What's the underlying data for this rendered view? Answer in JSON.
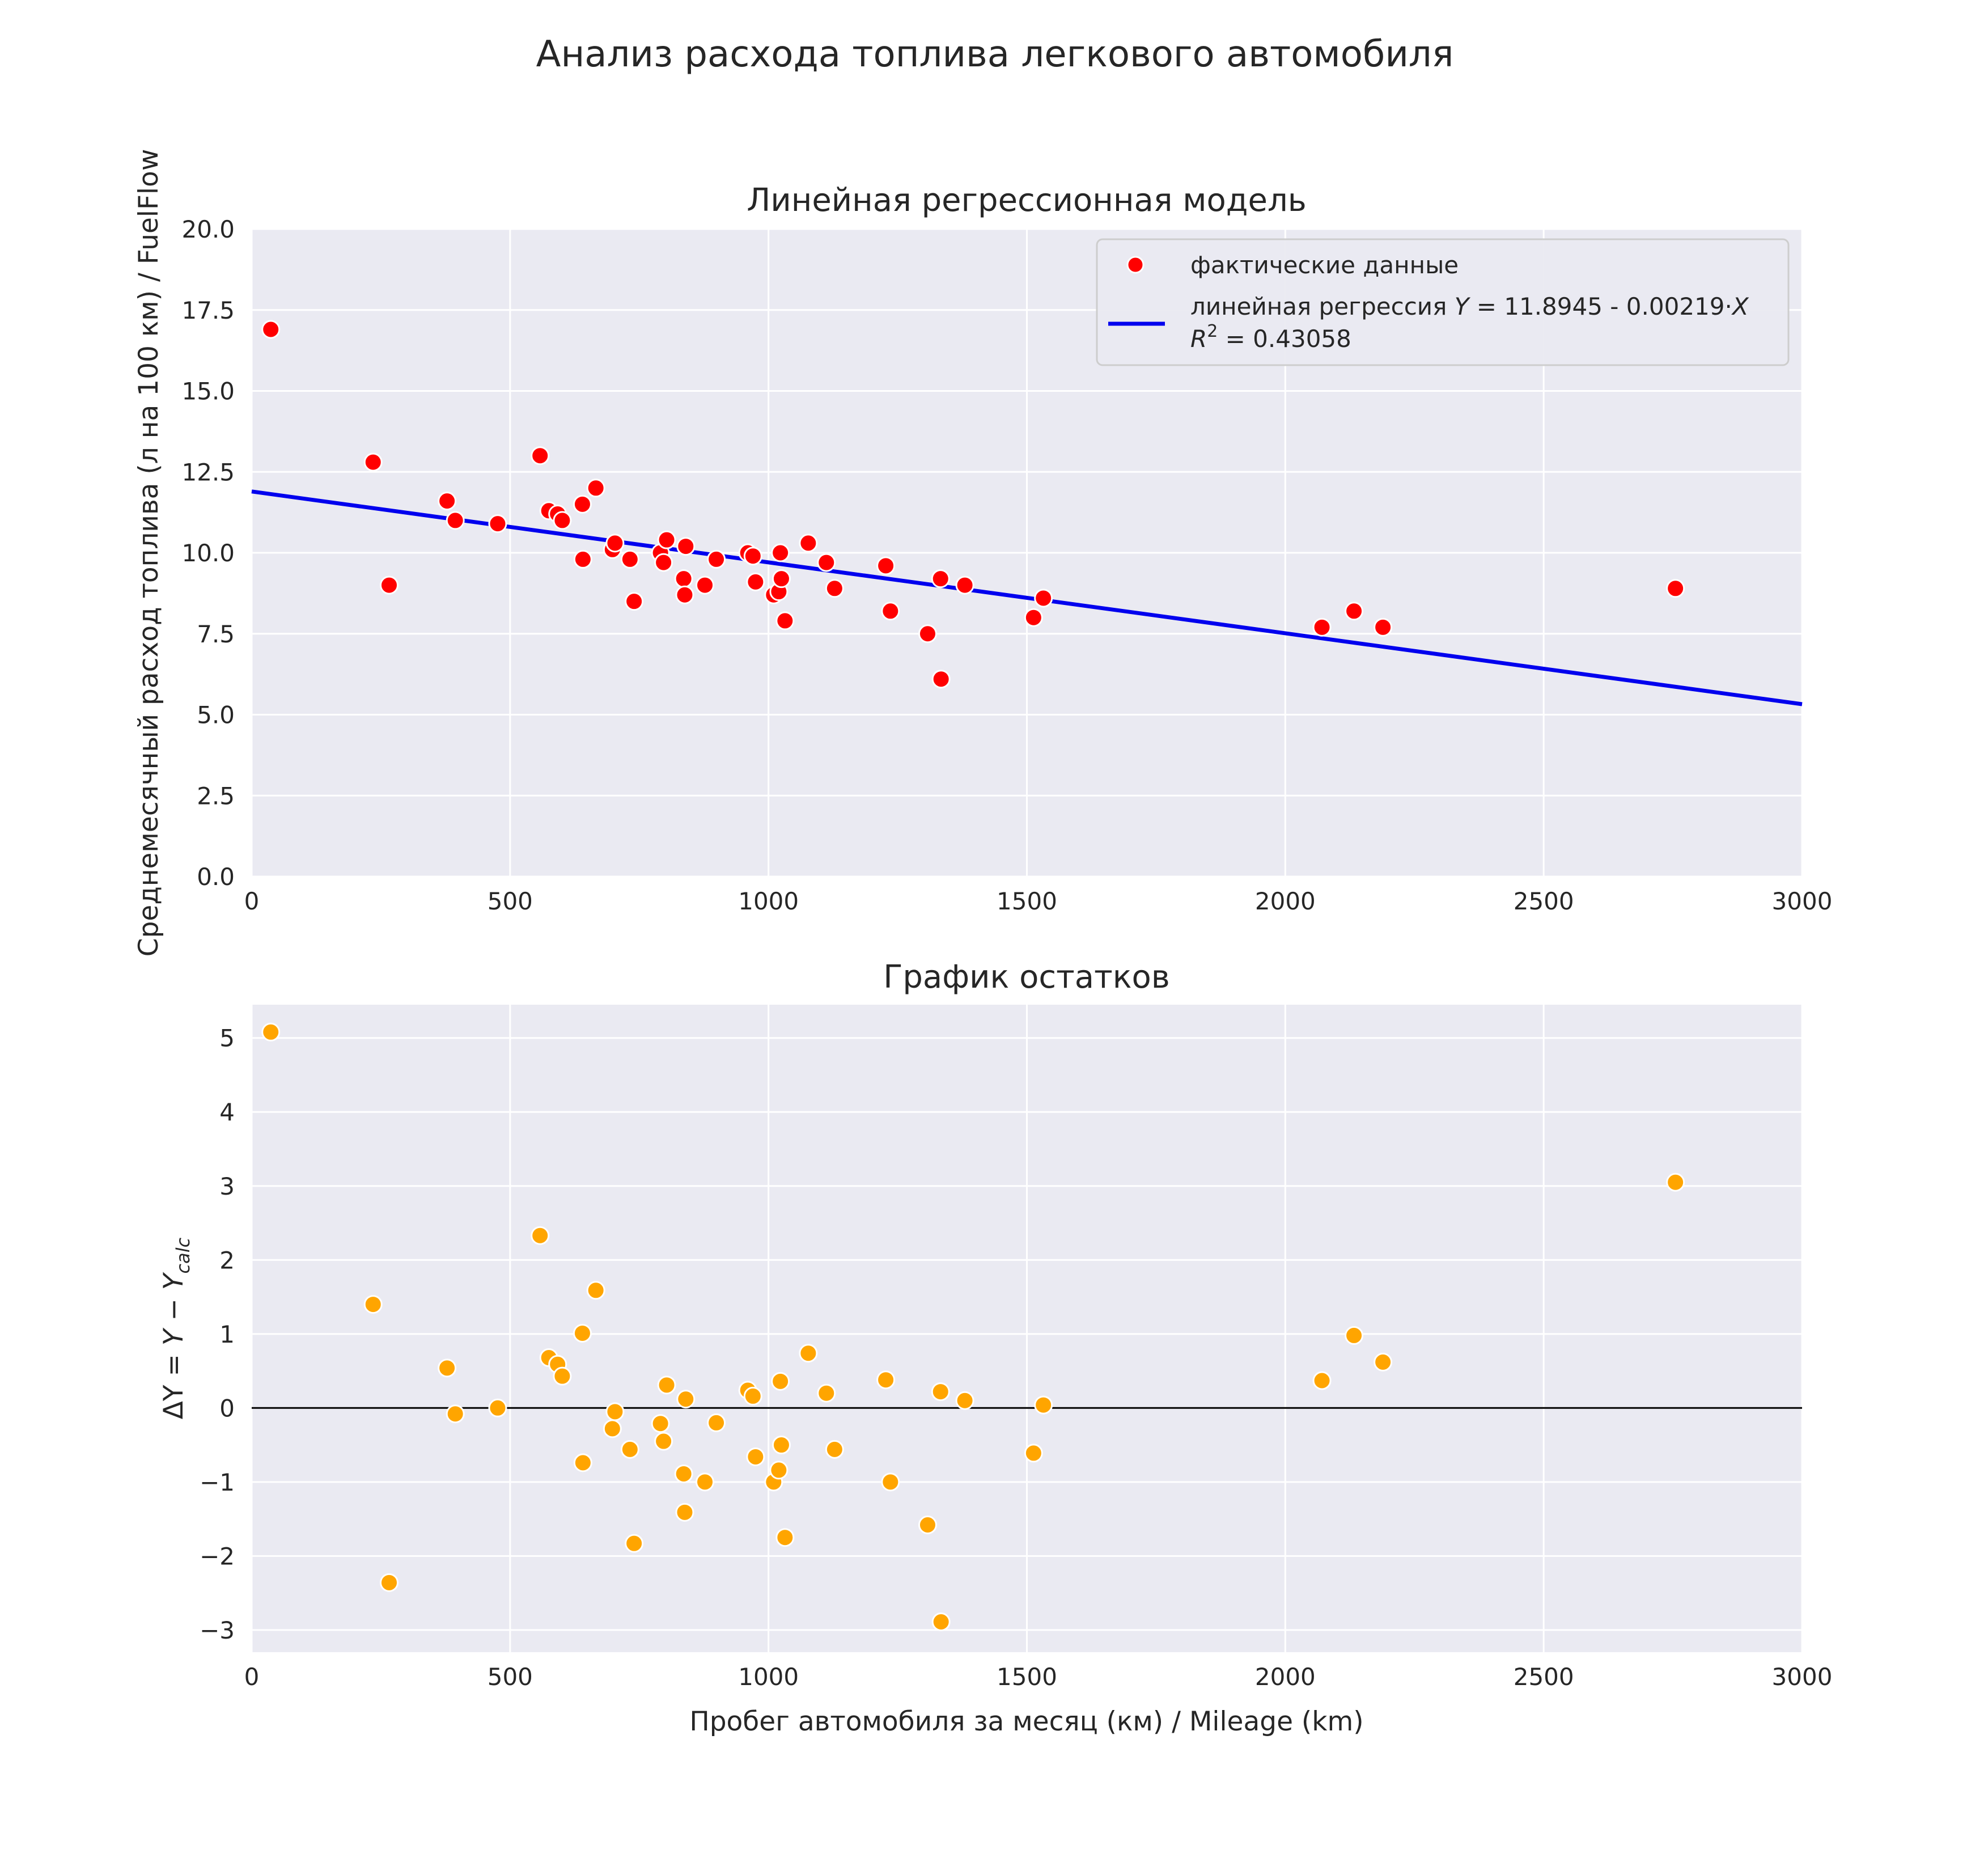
{
  "figure_title": "Анализ расхода топлива легкового автомобиля",
  "chart_data": [
    {
      "type": "scatter",
      "title": "Линейная регрессионная модель",
      "xlabel": "",
      "ylabel": "Среднемесячный расход топлива (л на 100 км) / FuelFlow",
      "xlim": [
        0,
        3000
      ],
      "ylim": [
        0,
        20
      ],
      "xticks": [
        "0",
        "500",
        "1000",
        "1500",
        "2000",
        "2500",
        "3000"
      ],
      "yticks": [
        "0.0",
        "2.5",
        "5.0",
        "7.5",
        "10.0",
        "12.5",
        "15.0",
        "17.5",
        "20.0"
      ],
      "grid": true,
      "legend_position": "top-right",
      "legend": {
        "points_label": "фактические данные",
        "line_label_prefix": "линейная регрессия ",
        "line_label_eq": " = 11.8945 - 0.00219·",
        "var_y": "Y",
        "var_x": "X",
        "r2_var": "R",
        "r2_exp": "2",
        "r2_value": " = 0.43058"
      },
      "series": [
        {
          "name": "фактические данные",
          "kind": "points",
          "color": "#ff0000",
          "x": [
            37,
            235,
            266,
            378,
            394,
            476,
            558,
            575,
            592,
            601,
            640,
            641,
            666,
            698,
            703,
            732,
            740,
            791,
            797,
            803,
            836,
            838,
            840,
            877,
            899,
            960,
            970,
            975,
            1010,
            1020,
            1023,
            1025,
            1032,
            1077,
            1112,
            1128,
            1227,
            1236,
            1308,
            1333,
            1334,
            1380,
            1513,
            1532,
            2071,
            2133,
            2189,
            2755
          ],
          "y": [
            16.9,
            12.8,
            9.0,
            11.6,
            11.0,
            10.9,
            13.0,
            11.3,
            11.2,
            11.0,
            11.5,
            9.8,
            12.0,
            10.1,
            10.3,
            9.8,
            8.5,
            10.0,
            9.7,
            10.4,
            9.2,
            8.7,
            10.2,
            9.0,
            9.8,
            10.0,
            9.9,
            9.1,
            8.7,
            8.8,
            10.0,
            9.2,
            7.9,
            10.3,
            9.7,
            8.9,
            9.6,
            8.2,
            7.5,
            9.2,
            6.1,
            9.0,
            8.0,
            8.6,
            7.7,
            8.2,
            7.7,
            8.9
          ]
        },
        {
          "name": "линейная регрессия Y = 11.8945 - 0.00219·X R2 = 0.43058",
          "kind": "line",
          "color": "#0000ee",
          "x": [
            0,
            3000
          ],
          "y": [
            11.8945,
            5.3245
          ]
        }
      ]
    },
    {
      "type": "scatter",
      "title": "График остатков",
      "xlabel": "Пробег автомобиля за месяц (км) / Mileage (km)",
      "ylabel_parts": {
        "delta": "ΔY = ",
        "y": "Y",
        "minus": " − ",
        "ycalc": "Y",
        "sub": "calc"
      },
      "xlim": [
        0,
        3000
      ],
      "ylim": [
        -3.3,
        5.45
      ],
      "xticks": [
        "0",
        "500",
        "1000",
        "1500",
        "2000",
        "2500",
        "3000"
      ],
      "yticks": [
        "−3",
        "−2",
        "−1",
        "0",
        "1",
        "2",
        "3",
        "4",
        "5"
      ],
      "yticks_values": [
        -3,
        -2,
        -1,
        0,
        1,
        2,
        3,
        4,
        5
      ],
      "grid": true,
      "reference_line_y": 0,
      "series": [
        {
          "kind": "points",
          "color": "#ffa500",
          "x": [
            37,
            235,
            266,
            378,
            394,
            476,
            558,
            575,
            592,
            601,
            640,
            641,
            666,
            698,
            703,
            732,
            740,
            791,
            797,
            803,
            836,
            838,
            840,
            877,
            899,
            960,
            970,
            975,
            1010,
            1020,
            1023,
            1025,
            1032,
            1077,
            1112,
            1128,
            1227,
            1236,
            1308,
            1333,
            1334,
            1380,
            1513,
            1532,
            2071,
            2133,
            2189,
            2755
          ],
          "y": [
            5.08,
            1.4,
            -2.36,
            0.54,
            -0.08,
            0.0,
            2.33,
            0.68,
            0.59,
            0.43,
            1.01,
            -0.74,
            1.59,
            -0.28,
            -0.05,
            -0.56,
            -1.83,
            -0.21,
            -0.45,
            0.31,
            -0.89,
            -1.41,
            0.12,
            -1.0,
            -0.2,
            0.24,
            0.16,
            -0.66,
            -1.0,
            -0.84,
            0.36,
            -0.5,
            -1.75,
            0.74,
            0.2,
            -0.56,
            0.38,
            -1.0,
            -1.58,
            0.22,
            -2.89,
            0.1,
            -0.61,
            0.04,
            0.37,
            0.98,
            0.62,
            3.05
          ]
        }
      ]
    }
  ]
}
